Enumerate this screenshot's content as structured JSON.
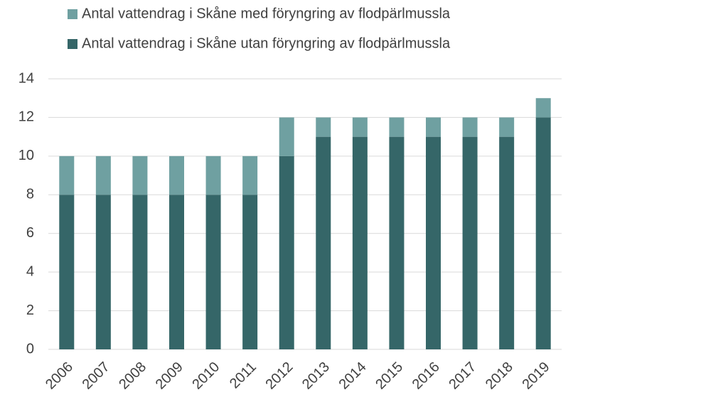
{
  "chart_data": {
    "type": "stacked-bar",
    "categories": [
      "2006",
      "2007",
      "2008",
      "2009",
      "2010",
      "2011",
      "2012",
      "2013",
      "2014",
      "2015",
      "2016",
      "2017",
      "2018",
      "2019"
    ],
    "series": [
      {
        "name": "Antal vattendrag i Skåne utan föryngring av flodpärlmussla",
        "color": "#356668",
        "values": [
          8,
          8,
          8,
          8,
          8,
          8,
          10,
          11,
          11,
          11,
          11,
          11,
          11,
          12
        ]
      },
      {
        "name": "Antal vattendrag i Skåne med föryngring av flodpärlmussla",
        "color": "#6fa0a1",
        "values": [
          2,
          2,
          2,
          2,
          2,
          2,
          2,
          1,
          1,
          1,
          1,
          1,
          1,
          1
        ]
      }
    ],
    "ylim": [
      0,
      14
    ],
    "yticks": [
      0,
      2,
      4,
      6,
      8,
      10,
      12,
      14
    ],
    "grid": true
  }
}
